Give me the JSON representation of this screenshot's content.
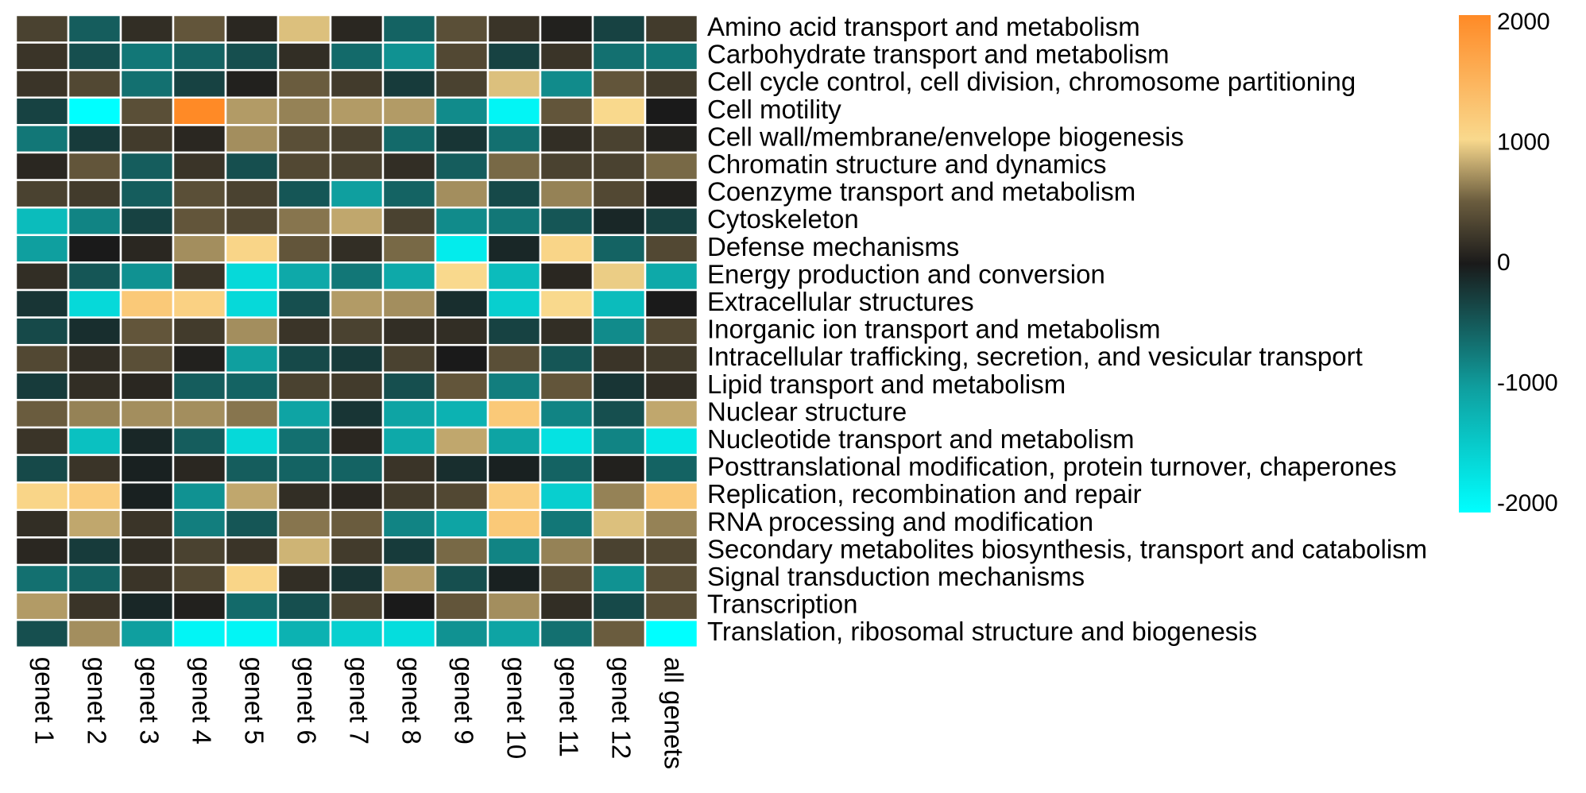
{
  "chart_data": {
    "type": "heatmap",
    "title": "",
    "xlabel": "",
    "ylabel": "",
    "columns": [
      "genet 1",
      "genet 2",
      "genet 3",
      "genet 4",
      "genet 5",
      "genet 6",
      "genet 7",
      "genet 8",
      "genet 9",
      "genet 10",
      "genet 11",
      "genet 12",
      "all genets"
    ],
    "rows": [
      "Amino acid transport and metabolism",
      "Carbohydrate transport and metabolism",
      "Cell cycle control, cell division, chromosome partitioning",
      "Cell motility",
      "Cell wall/membrane/envelope biogenesis",
      "Chromatin structure and dynamics",
      "Coenzyme transport and metabolism",
      "Cytoskeleton",
      "Defense mechanisms",
      "Energy production and conversion",
      "Extracellular structures",
      "Inorganic ion transport and metabolism",
      "Intracellular trafficking, secretion, and vesicular transport",
      "Lipid transport and metabolism",
      "Nuclear structure",
      "Nucleotide transport and metabolism",
      "Posttranslational modification, protein turnover, chaperones",
      "Replication, recombination and repair",
      "RNA processing and modification",
      "Secondary metabolites biosynthesis, transport and catabolism",
      "Signal transduction mechanisms",
      "Transcription",
      "Translation, ribosomal structure and biogenesis"
    ],
    "values": [
      [
        300,
        -500,
        150,
        450,
        100,
        900,
        100,
        -550,
        400,
        200,
        50,
        -300,
        250
      ],
      [
        200,
        -400,
        -700,
        -550,
        -400,
        150,
        -600,
        -900,
        350,
        -300,
        200,
        -650,
        -700
      ],
      [
        200,
        350,
        -650,
        -300,
        50,
        500,
        250,
        -250,
        300,
        900,
        -850,
        450,
        250
      ],
      [
        -300,
        -2000,
        400,
        2000,
        750,
        650,
        750,
        750,
        -850,
        -1900,
        450,
        1000,
        0
      ],
      [
        -700,
        -250,
        250,
        100,
        700,
        400,
        300,
        -600,
        -200,
        -650,
        150,
        300,
        50
      ],
      [
        100,
        450,
        -500,
        200,
        -400,
        350,
        300,
        150,
        -500,
        550,
        300,
        300,
        550
      ],
      [
        300,
        250,
        -500,
        400,
        300,
        -450,
        -1000,
        -550,
        700,
        -350,
        650,
        350,
        50
      ],
      [
        -1300,
        -800,
        -300,
        450,
        350,
        600,
        800,
        300,
        -850,
        -700,
        -450,
        -100,
        -300
      ],
      [
        -1000,
        0,
        100,
        700,
        1050,
        450,
        150,
        550,
        -1800,
        -100,
        1050,
        -550,
        350
      ],
      [
        150,
        -450,
        -900,
        200,
        -1600,
        -1100,
        -700,
        -1100,
        1000,
        -1300,
        100,
        950,
        -1100
      ],
      [
        -200,
        -1600,
        1200,
        1100,
        -1600,
        -400,
        750,
        700,
        -150,
        -1500,
        1000,
        -1300,
        0
      ],
      [
        -350,
        -150,
        450,
        250,
        700,
        200,
        300,
        150,
        150,
        -300,
        150,
        -850,
        350
      ],
      [
        350,
        150,
        400,
        50,
        -1000,
        -350,
        -250,
        300,
        0,
        400,
        -450,
        200,
        250
      ],
      [
        -250,
        150,
        100,
        -500,
        -550,
        300,
        250,
        -400,
        450,
        -750,
        450,
        -200,
        150
      ],
      [
        500,
        650,
        700,
        700,
        600,
        -1050,
        -200,
        -1050,
        -1200,
        1200,
        -800,
        -400,
        800
      ],
      [
        200,
        -1350,
        -100,
        -500,
        -1600,
        -650,
        100,
        -1100,
        800,
        -1050,
        -1700,
        -800,
        -1750
      ],
      [
        -350,
        200,
        -50,
        100,
        -500,
        -550,
        -550,
        200,
        -150,
        -50,
        -550,
        50,
        -550
      ],
      [
        1050,
        1150,
        -50,
        -900,
        800,
        150,
        100,
        250,
        350,
        1150,
        -1500,
        650,
        1200
      ],
      [
        150,
        800,
        200,
        -750,
        -450,
        600,
        500,
        -800,
        -1050,
        1200,
        -700,
        900,
        650
      ],
      [
        100,
        -250,
        150,
        300,
        200,
        850,
        250,
        -250,
        550,
        -800,
        650,
        300,
        350
      ],
      [
        -650,
        -550,
        200,
        350,
        1050,
        150,
        -200,
        750,
        -400,
        -50,
        400,
        -900,
        400
      ],
      [
        750,
        200,
        -100,
        50,
        -600,
        -400,
        300,
        0,
        450,
        700,
        150,
        -350,
        400
      ],
      [
        -400,
        700,
        -1000,
        -1900,
        -1900,
        -1200,
        -1500,
        -1650,
        -900,
        -1050,
        -650,
        500,
        -2000
      ]
    ],
    "color_scale": {
      "min": -2000,
      "max": 2000,
      "stops": [
        {
          "value": -2000,
          "color": "#00ffff"
        },
        {
          "value": -1000,
          "color": "#0f9f9f"
        },
        {
          "value": 0,
          "color": "#1a1a1a"
        },
        {
          "value": 500,
          "color": "#6a5c3e"
        },
        {
          "value": 1000,
          "color": "#f9d98d"
        },
        {
          "value": 2000,
          "color": "#ff8a26"
        }
      ],
      "ticks": [
        "2000",
        "1000",
        "0",
        "-1000",
        "-2000"
      ]
    },
    "grid_line_color": "#ffffff"
  }
}
